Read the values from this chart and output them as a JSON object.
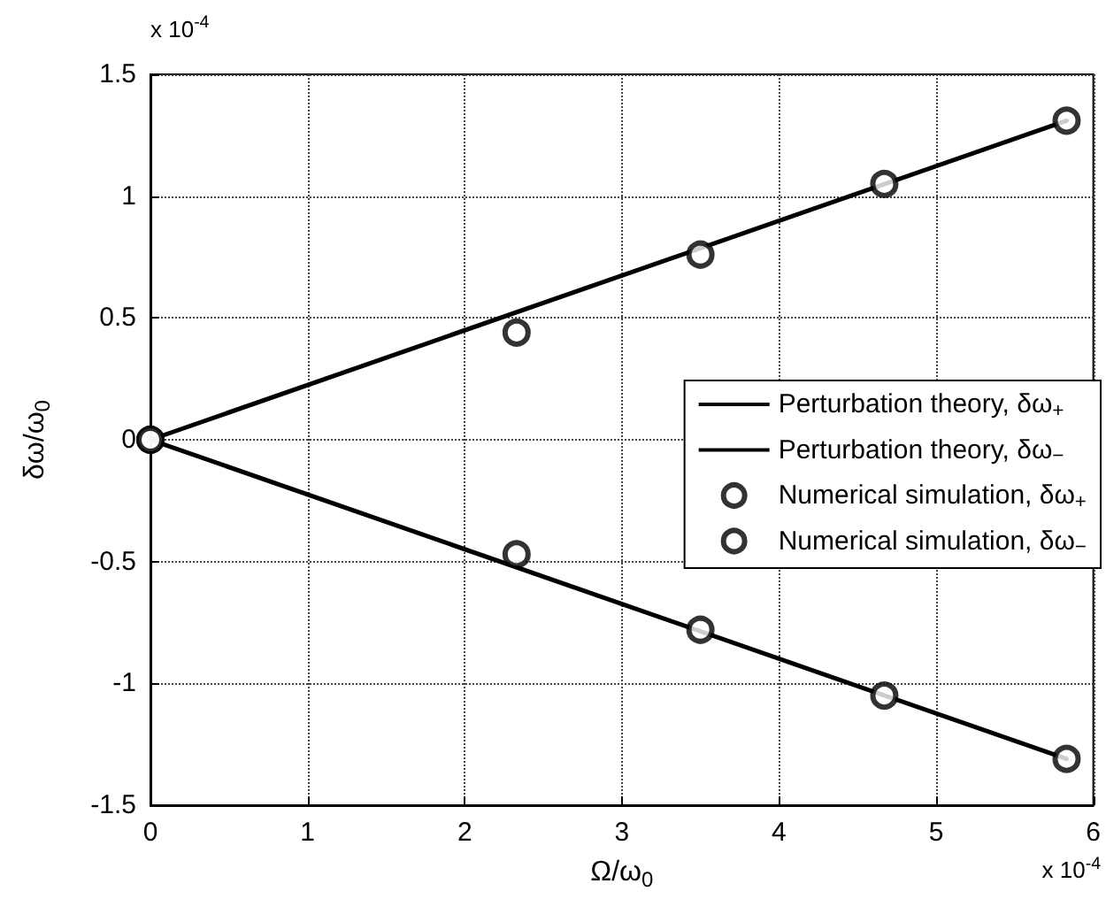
{
  "chart_data": {
    "type": "line",
    "xlabel": "Ω/ω$_{0}$",
    "ylabel": "δω/ω$_{0}$",
    "annotations": [
      "x 10$^{-4}$",
      "x 10$^{-4}$"
    ],
    "series": [
      {
        "name": "Perturbation theory, δω$_{+}$",
        "color": "#000000",
        "marker": "none",
        "line_style": "solid",
        "x": [
          0,
          5.83
        ],
        "values": [
          0,
          1.31
        ]
      },
      {
        "name": "Perturbation theory, δω$_{−}$",
        "color": "#000000",
        "marker": "none",
        "line_style": "solid",
        "x": [
          0,
          5.83
        ],
        "values": [
          0,
          -1.31
        ]
      },
      {
        "name": "Numerical simulation, δω$_{+}$",
        "type": "scatter",
        "color": "#000000",
        "marker": "circle",
        "x": [
          0,
          2.33,
          3.5,
          4.67,
          5.83
        ],
        "values": [
          0,
          0.44,
          0.76,
          1.05,
          1.31
        ]
      },
      {
        "name": "Numerical simulation, δω$_{−}$",
        "type": "scatter",
        "color": "#000000",
        "marker": "circle",
        "x": [
          0,
          2.33,
          3.5,
          4.67,
          5.83
        ],
        "values": [
          0,
          -0.47,
          -0.78,
          -1.05,
          -1.31
        ]
      }
    ],
    "xlim": [
      0,
      6
    ],
    "xticks": [
      0,
      1,
      2,
      3,
      4,
      5,
      6
    ],
    "ylim": [
      -1.5,
      1.5
    ],
    "yticks": [
      -1.5,
      -1,
      -0.5,
      0,
      0.5,
      1,
      1.5
    ],
    "grid": true,
    "legend": "right"
  }
}
